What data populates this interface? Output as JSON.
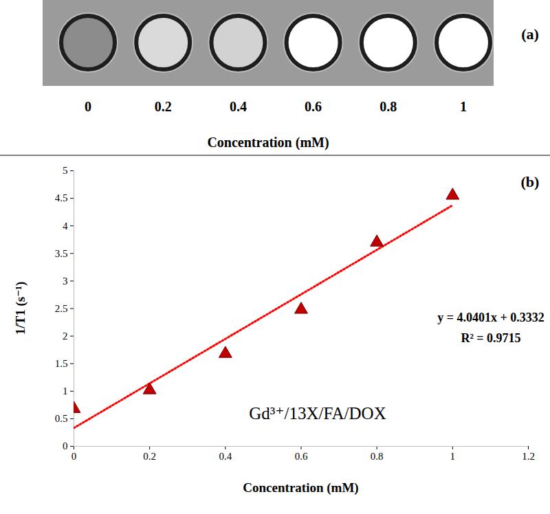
{
  "chart_data": [
    {
      "type": "image",
      "annotations": [
        "(a)"
      ],
      "xlabel": "Concentration (mM)",
      "x": [
        0,
        0.2,
        0.4,
        0.6,
        0.8,
        1
      ],
      "colors": [
        "#8c8c8c",
        "#dadada",
        "#d2d2d2",
        "#ffffff",
        "#ffffff",
        "#ffffff"
      ]
    },
    {
      "type": "scatter",
      "annotations": [
        "(b)",
        "y = 4.0401x + 0.3332",
        "R² = 0.9715",
        "Gd³⁺/13X/FA/DOX"
      ],
      "xlabel": "Concentration (mM)",
      "ylabel": "1/T1 (s⁻¹)",
      "x": [
        0,
        0.2,
        0.4,
        0.6,
        0.8,
        1
      ],
      "series": [
        {
          "type": "scatter",
          "marker": "triangle",
          "color": "#c00000",
          "values": [
            0.68,
            1.02,
            1.68,
            2.48,
            3.7,
            4.55
          ]
        },
        {
          "type": "line",
          "line_style": "dotted",
          "color": "#ff0000",
          "x": [
            0,
            1
          ],
          "values": [
            0.3332,
            4.3733
          ]
        }
      ],
      "xlim": [
        0,
        1.2
      ],
      "xticks": [
        0,
        0.2,
        0.4,
        0.6,
        0.8,
        1,
        1.2
      ],
      "ylim": [
        0,
        5
      ],
      "yticks": [
        0,
        0.5,
        1,
        1.5,
        2,
        2.5,
        3,
        3.5,
        4,
        4.5,
        5
      ],
      "grid": false
    }
  ]
}
